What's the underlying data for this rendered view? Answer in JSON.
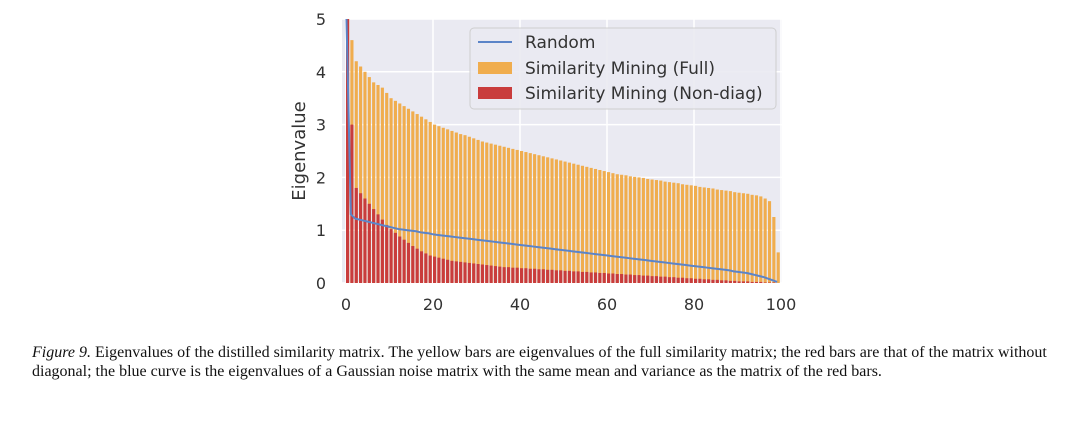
{
  "chart_data": {
    "type": "bar",
    "ylabel": "Eigenvalue",
    "xlabel": "",
    "xlim": [
      0,
      100
    ],
    "ylim": [
      0,
      5
    ],
    "xticks": [
      "0",
      "20",
      "40",
      "60",
      "80",
      "100"
    ],
    "yticks": [
      "0",
      "1",
      "2",
      "3",
      "4",
      "5"
    ],
    "grid": true,
    "legend_position": "top-right",
    "legend": [
      "Random",
      "Similarity Mining (Full)",
      "Similarity Mining (Non-diag)"
    ],
    "x": [
      0,
      1,
      2,
      3,
      4,
      5,
      6,
      7,
      8,
      9,
      10,
      11,
      12,
      13,
      14,
      15,
      16,
      17,
      18,
      19,
      20,
      21,
      22,
      23,
      24,
      25,
      26,
      27,
      28,
      29,
      30,
      31,
      32,
      33,
      34,
      35,
      36,
      37,
      38,
      39,
      40,
      41,
      42,
      43,
      44,
      45,
      46,
      47,
      48,
      49,
      50,
      51,
      52,
      53,
      54,
      55,
      56,
      57,
      58,
      59,
      60,
      61,
      62,
      63,
      64,
      65,
      66,
      67,
      68,
      69,
      70,
      71,
      72,
      73,
      74,
      75,
      76,
      77,
      78,
      79,
      80,
      81,
      82,
      83,
      84,
      85,
      86,
      87,
      88,
      89,
      90,
      91,
      92,
      93,
      94,
      95,
      96,
      97,
      98,
      99
    ],
    "series": [
      {
        "name": "Similarity Mining (Full)",
        "kind": "bar",
        "color": "#f0ad4e",
        "values": [
          5.0,
          4.6,
          4.2,
          4.1,
          4.0,
          3.9,
          3.8,
          3.75,
          3.7,
          3.6,
          3.5,
          3.45,
          3.4,
          3.35,
          3.3,
          3.25,
          3.2,
          3.15,
          3.1,
          3.05,
          3.0,
          2.97,
          2.94,
          2.91,
          2.88,
          2.85,
          2.82,
          2.8,
          2.77,
          2.74,
          2.71,
          2.68,
          2.66,
          2.64,
          2.62,
          2.6,
          2.58,
          2.56,
          2.54,
          2.52,
          2.5,
          2.48,
          2.46,
          2.44,
          2.42,
          2.4,
          2.38,
          2.36,
          2.34,
          2.32,
          2.3,
          2.28,
          2.26,
          2.24,
          2.22,
          2.2,
          2.18,
          2.16,
          2.14,
          2.12,
          2.1,
          2.08,
          2.06,
          2.05,
          2.04,
          2.02,
          2.01,
          2.0,
          1.99,
          1.97,
          1.96,
          1.95,
          1.94,
          1.92,
          1.91,
          1.9,
          1.89,
          1.87,
          1.86,
          1.85,
          1.84,
          1.82,
          1.81,
          1.8,
          1.79,
          1.77,
          1.76,
          1.75,
          1.74,
          1.72,
          1.71,
          1.7,
          1.69,
          1.67,
          1.66,
          1.64,
          1.6,
          1.55,
          1.25,
          0.58
        ]
      },
      {
        "name": "Similarity Mining (Non-diag)",
        "kind": "bar",
        "color": "#c93c3c",
        "values": [
          5.0,
          3.0,
          1.8,
          1.7,
          1.6,
          1.5,
          1.4,
          1.3,
          1.2,
          1.1,
          1.02,
          0.95,
          0.88,
          0.82,
          0.76,
          0.7,
          0.65,
          0.6,
          0.56,
          0.52,
          0.5,
          0.48,
          0.46,
          0.44,
          0.42,
          0.41,
          0.4,
          0.39,
          0.38,
          0.37,
          0.36,
          0.35,
          0.34,
          0.33,
          0.32,
          0.31,
          0.3,
          0.3,
          0.29,
          0.29,
          0.28,
          0.28,
          0.27,
          0.27,
          0.26,
          0.26,
          0.25,
          0.25,
          0.24,
          0.24,
          0.23,
          0.23,
          0.22,
          0.22,
          0.21,
          0.21,
          0.2,
          0.2,
          0.19,
          0.19,
          0.18,
          0.18,
          0.17,
          0.17,
          0.16,
          0.16,
          0.15,
          0.15,
          0.14,
          0.14,
          0.13,
          0.13,
          0.12,
          0.12,
          0.11,
          0.11,
          0.1,
          0.1,
          0.09,
          0.09,
          0.08,
          0.08,
          0.07,
          0.07,
          0.06,
          0.06,
          0.05,
          0.05,
          0.04,
          0.04,
          0.03,
          0.03,
          0.03,
          0.02,
          0.02,
          0.02,
          0.01,
          0.01,
          0.01,
          0.0
        ]
      },
      {
        "name": "Random",
        "kind": "line",
        "color": "#5b84c8",
        "values": [
          5.0,
          1.3,
          1.22,
          1.2,
          1.18,
          1.16,
          1.14,
          1.12,
          1.1,
          1.08,
          1.06,
          1.04,
          1.02,
          1.01,
          1.0,
          0.99,
          0.98,
          0.96,
          0.95,
          0.94,
          0.92,
          0.91,
          0.9,
          0.89,
          0.88,
          0.87,
          0.86,
          0.85,
          0.84,
          0.83,
          0.82,
          0.81,
          0.8,
          0.79,
          0.78,
          0.77,
          0.76,
          0.75,
          0.74,
          0.73,
          0.72,
          0.71,
          0.7,
          0.69,
          0.68,
          0.67,
          0.66,
          0.65,
          0.64,
          0.63,
          0.62,
          0.61,
          0.6,
          0.59,
          0.58,
          0.57,
          0.56,
          0.55,
          0.54,
          0.53,
          0.52,
          0.51,
          0.5,
          0.49,
          0.48,
          0.47,
          0.46,
          0.45,
          0.44,
          0.43,
          0.42,
          0.41,
          0.4,
          0.39,
          0.38,
          0.37,
          0.36,
          0.35,
          0.34,
          0.33,
          0.32,
          0.31,
          0.3,
          0.29,
          0.28,
          0.27,
          0.26,
          0.25,
          0.24,
          0.22,
          0.21,
          0.2,
          0.19,
          0.17,
          0.15,
          0.13,
          0.11,
          0.08,
          0.05,
          0.02
        ]
      }
    ]
  },
  "caption": {
    "label": "Figure 9.",
    "text": " Eigenvalues of the distilled similarity matrix. The yellow bars are eigenvalues of the full similarity matrix; the red bars are that of the matrix without diagonal; the blue curve is the eigenvalues of a Gaussian noise matrix with the same mean and variance as the matrix of the red bars."
  },
  "colors": {
    "plot_background": "#eaeaf2",
    "grid": "#ffffff",
    "random": "#5b84c8",
    "full": "#f0ad4e",
    "nondiag": "#c93c3c"
  }
}
